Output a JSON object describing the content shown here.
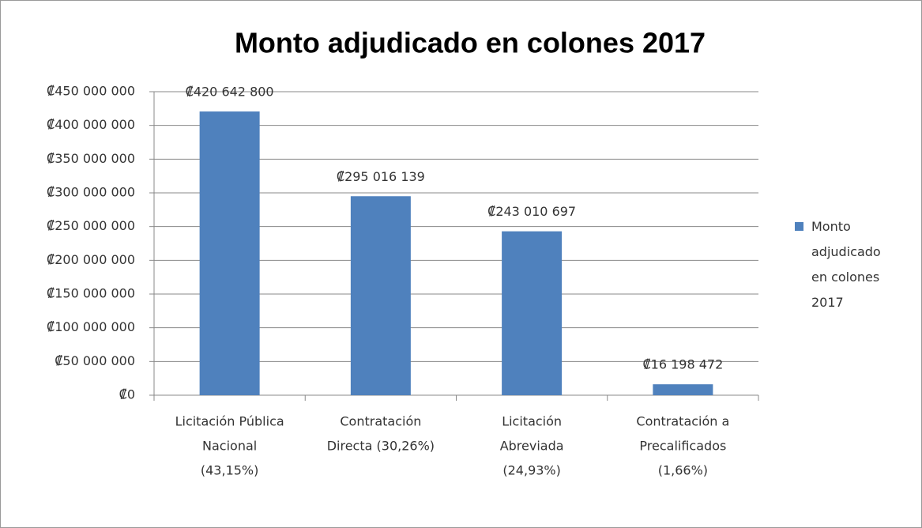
{
  "chart_data": {
    "type": "bar",
    "title": "Monto adjudicado en colones 2017",
    "categories": [
      [
        "Licitación Pública",
        "Nacional",
        "(43,15%)"
      ],
      [
        "Contratación",
        "Directa (30,26%)"
      ],
      [
        "Licitación",
        "Abreviada",
        "(24,93%)"
      ],
      [
        "Contratación a",
        "Precalificados",
        "(1,66%)"
      ]
    ],
    "series": [
      {
        "name": "Monto adjudicado en colones 2017",
        "color": "#4f81bd",
        "values": [
          420642800,
          295016139,
          243010697,
          16198472
        ],
        "value_labels": [
          "₡420 642 800",
          "₡295 016 139",
          "₡243 010 697",
          "₡16 198 472"
        ]
      }
    ],
    "ylim": [
      0,
      450000000
    ],
    "yticks": [
      {
        "value": 0,
        "label": "₡0"
      },
      {
        "value": 50000000,
        "label": "₡50 000 000"
      },
      {
        "value": 100000000,
        "label": "₡100 000 000"
      },
      {
        "value": 150000000,
        "label": "₡150 000 000"
      },
      {
        "value": 200000000,
        "label": "₡200 000 000"
      },
      {
        "value": 250000000,
        "label": "₡250 000 000"
      },
      {
        "value": 300000000,
        "label": "₡300 000 000"
      },
      {
        "value": 350000000,
        "label": "₡350 000 000"
      },
      {
        "value": 400000000,
        "label": "₡400 000 000"
      },
      {
        "value": 450000000,
        "label": "₡450 000 000"
      }
    ],
    "grid": true,
    "legend": "right"
  }
}
